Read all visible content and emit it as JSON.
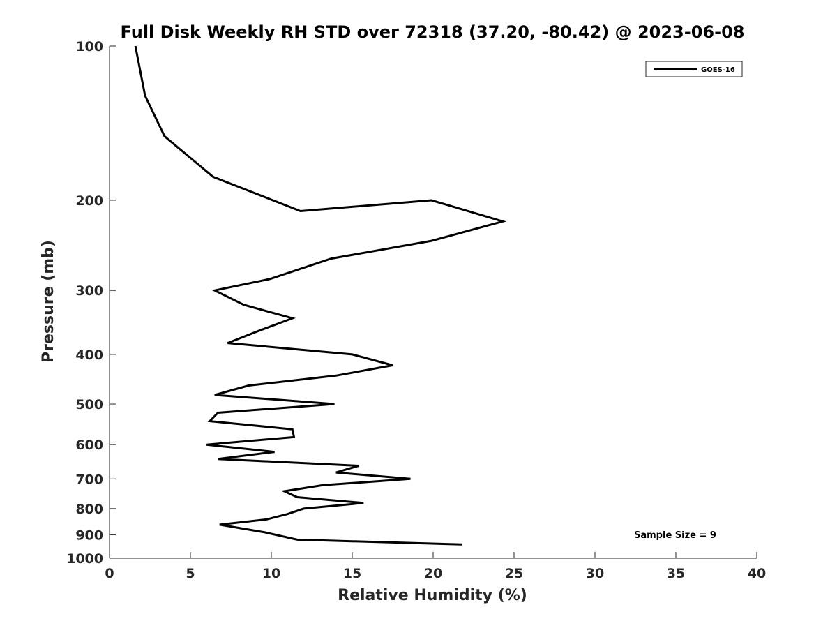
{
  "chart_data": {
    "type": "line",
    "title": "Full Disk Weekly RH STD over 72318 (37.20, -80.42) @ 2023-06-08",
    "xlabel": "Relative Humidity (%)",
    "ylabel": "Pressure (mb)",
    "xlim": [
      0,
      40
    ],
    "ylim": [
      100,
      1000
    ],
    "y_scale": "log",
    "y_reversed": true,
    "x_ticks": [
      0,
      5,
      10,
      15,
      20,
      25,
      30,
      35,
      40
    ],
    "y_ticks": [
      100,
      200,
      300,
      400,
      500,
      600,
      700,
      800,
      900,
      1000
    ],
    "grid": false,
    "legend_position": "top-right",
    "annotation": "Sample Size = 9",
    "series": [
      {
        "name": "GOES-16",
        "color": "#000000",
        "points": [
          [
            1.6,
            100
          ],
          [
            2.2,
            125
          ],
          [
            3.4,
            150
          ],
          [
            6.4,
            180
          ],
          [
            11.8,
            210
          ],
          [
            19.9,
            200
          ],
          [
            24.3,
            220
          ],
          [
            19.9,
            240
          ],
          [
            13.7,
            260
          ],
          [
            9.9,
            285
          ],
          [
            6.5,
            300
          ],
          [
            8.3,
            320
          ],
          [
            11.3,
            340
          ],
          [
            9.2,
            360
          ],
          [
            7.3,
            380
          ],
          [
            15.0,
            400
          ],
          [
            17.5,
            420
          ],
          [
            14.0,
            440
          ],
          [
            8.6,
            460
          ],
          [
            6.5,
            480
          ],
          [
            13.9,
            500
          ],
          [
            6.7,
            520
          ],
          [
            6.2,
            540
          ],
          [
            11.3,
            560
          ],
          [
            11.4,
            580
          ],
          [
            6.0,
            600
          ],
          [
            10.2,
            620
          ],
          [
            6.7,
            640
          ],
          [
            15.4,
            660
          ],
          [
            14.0,
            680
          ],
          [
            18.6,
            700
          ],
          [
            13.2,
            720
          ],
          [
            10.8,
            740
          ],
          [
            11.6,
            760
          ],
          [
            15.7,
            780
          ],
          [
            12.0,
            800
          ],
          [
            11.0,
            820
          ],
          [
            9.7,
            840
          ],
          [
            6.8,
            860
          ],
          [
            9.6,
            890
          ],
          [
            11.6,
            920
          ],
          [
            21.8,
            940
          ]
        ]
      }
    ]
  }
}
